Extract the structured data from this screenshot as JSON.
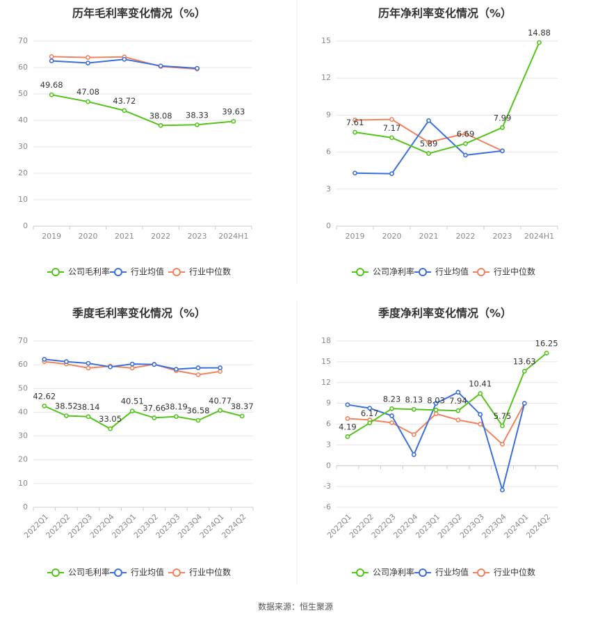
{
  "colors": {
    "company": "#52c41a",
    "industry_mean": "#3a6fdc",
    "industry_median": "#f2825e",
    "grid": "#e6e6e6",
    "axis": "#cccccc",
    "divider": "#eeeeee"
  },
  "legend_icon": "circle-line-marker",
  "source": "数据来源：恒生聚源",
  "chart_data": [
    {
      "id": "annual_gross",
      "type": "line",
      "title": "历年毛利率变化情况（%）",
      "categories": [
        "2019",
        "2020",
        "2021",
        "2022",
        "2023",
        "2024H1"
      ],
      "ylim": [
        0,
        70
      ],
      "yticks": [
        0,
        10,
        20,
        30,
        40,
        50,
        60,
        70
      ],
      "xlabel_rotation": "horizontal",
      "grid": true,
      "legend_position": "bottom",
      "series": [
        {
          "name": "公司毛利率",
          "color_key": "company",
          "labeled": true,
          "values": [
            49.68,
            47.08,
            43.72,
            38.08,
            38.33,
            39.63
          ],
          "labels": [
            "49.68",
            "47.08",
            "43.72",
            "38.08",
            "38.33",
            "39.63"
          ]
        },
        {
          "name": "行业均值",
          "color_key": "industry_mean",
          "labeled": false,
          "values": [
            62.5,
            61.7,
            63.1,
            60.6,
            59.7,
            null
          ]
        },
        {
          "name": "行业中位数",
          "color_key": "industry_median",
          "labeled": false,
          "values": [
            64.1,
            63.8,
            64.0,
            60.4,
            59.4,
            null
          ]
        }
      ]
    },
    {
      "id": "annual_net",
      "type": "line",
      "title": "历年净利率变化情况（%）",
      "categories": [
        "2019",
        "2020",
        "2021",
        "2022",
        "2023",
        "2024H1"
      ],
      "ylim": [
        0,
        15
      ],
      "yticks": [
        0,
        3,
        6,
        9,
        12,
        15
      ],
      "xlabel_rotation": "horizontal",
      "grid": true,
      "legend_position": "bottom",
      "series": [
        {
          "name": "公司净利率",
          "color_key": "company",
          "labeled": true,
          "values": [
            7.61,
            7.17,
            5.89,
            6.69,
            7.99,
            14.88
          ],
          "labels": [
            "7.61",
            "7.17",
            "5.89",
            "6.69",
            "7.99",
            "14.88"
          ]
        },
        {
          "name": "行业均值",
          "color_key": "industry_mean",
          "labeled": false,
          "values": [
            4.3,
            4.25,
            8.55,
            5.75,
            6.1,
            null
          ]
        },
        {
          "name": "行业中位数",
          "color_key": "industry_median",
          "labeled": false,
          "values": [
            8.6,
            8.65,
            6.8,
            7.5,
            6.1,
            null
          ]
        }
      ]
    },
    {
      "id": "quarterly_gross",
      "type": "line",
      "title": "季度毛利率变化情况（%）",
      "categories": [
        "2022Q1",
        "2022Q2",
        "2022Q3",
        "2022Q4",
        "2023Q1",
        "2023Q2",
        "2023Q3",
        "2023Q4",
        "2024Q1",
        "2024Q2"
      ],
      "ylim": [
        0,
        70
      ],
      "yticks": [
        0,
        10,
        20,
        30,
        40,
        50,
        60,
        70
      ],
      "xlabel_rotation": "rotated",
      "grid": true,
      "legend_position": "bottom",
      "series": [
        {
          "name": "公司毛利率",
          "color_key": "company",
          "labeled": true,
          "values": [
            42.62,
            38.52,
            38.14,
            33.05,
            40.51,
            37.66,
            38.19,
            36.58,
            40.77,
            38.37
          ],
          "labels": [
            "42.62",
            "38.52",
            "38.14",
            "33.05",
            "40.51",
            "37.66",
            "38.19",
            "36.58",
            "40.77",
            "38.37"
          ]
        },
        {
          "name": "行业均值",
          "color_key": "industry_mean",
          "labeled": false,
          "values": [
            62.3,
            61.3,
            60.6,
            59.1,
            60.3,
            60.1,
            58.1,
            58.7,
            58.7,
            null
          ]
        },
        {
          "name": "行业中位数",
          "color_key": "industry_median",
          "labeled": false,
          "values": [
            61.3,
            60.3,
            58.6,
            59.4,
            58.6,
            60.2,
            57.5,
            55.8,
            57.2,
            null
          ]
        }
      ]
    },
    {
      "id": "quarterly_net",
      "type": "line",
      "title": "季度净利率变化情况（%）",
      "categories": [
        "2022Q1",
        "2022Q2",
        "2022Q3",
        "2022Q4",
        "2023Q1",
        "2023Q2",
        "2023Q3",
        "2023Q4",
        "2024Q1",
        "2024Q2"
      ],
      "ylim": [
        -6,
        18
      ],
      "yticks": [
        -6,
        -3,
        0,
        3,
        6,
        9,
        12,
        15,
        18
      ],
      "xlabel_rotation": "rotated",
      "grid": true,
      "legend_position": "bottom",
      "series": [
        {
          "name": "公司净利率",
          "color_key": "company",
          "labeled": true,
          "values": [
            4.19,
            6.17,
            8.23,
            8.13,
            8.03,
            7.94,
            10.41,
            5.75,
            13.63,
            16.25
          ],
          "labels": [
            "4.19",
            "6.17",
            "8.23",
            "8.13",
            "8.03",
            "7.94",
            "10.41",
            "5.75",
            "13.63",
            "16.25"
          ]
        },
        {
          "name": "行业均值",
          "color_key": "industry_mean",
          "labeled": false,
          "values": [
            8.8,
            8.3,
            7.2,
            1.6,
            9.0,
            10.6,
            7.4,
            -3.5,
            9.0,
            null
          ]
        },
        {
          "name": "行业中位数",
          "color_key": "industry_median",
          "labeled": false,
          "values": [
            6.8,
            6.6,
            6.2,
            4.5,
            7.5,
            6.6,
            6.0,
            3.1,
            9.0,
            null
          ]
        }
      ]
    }
  ]
}
